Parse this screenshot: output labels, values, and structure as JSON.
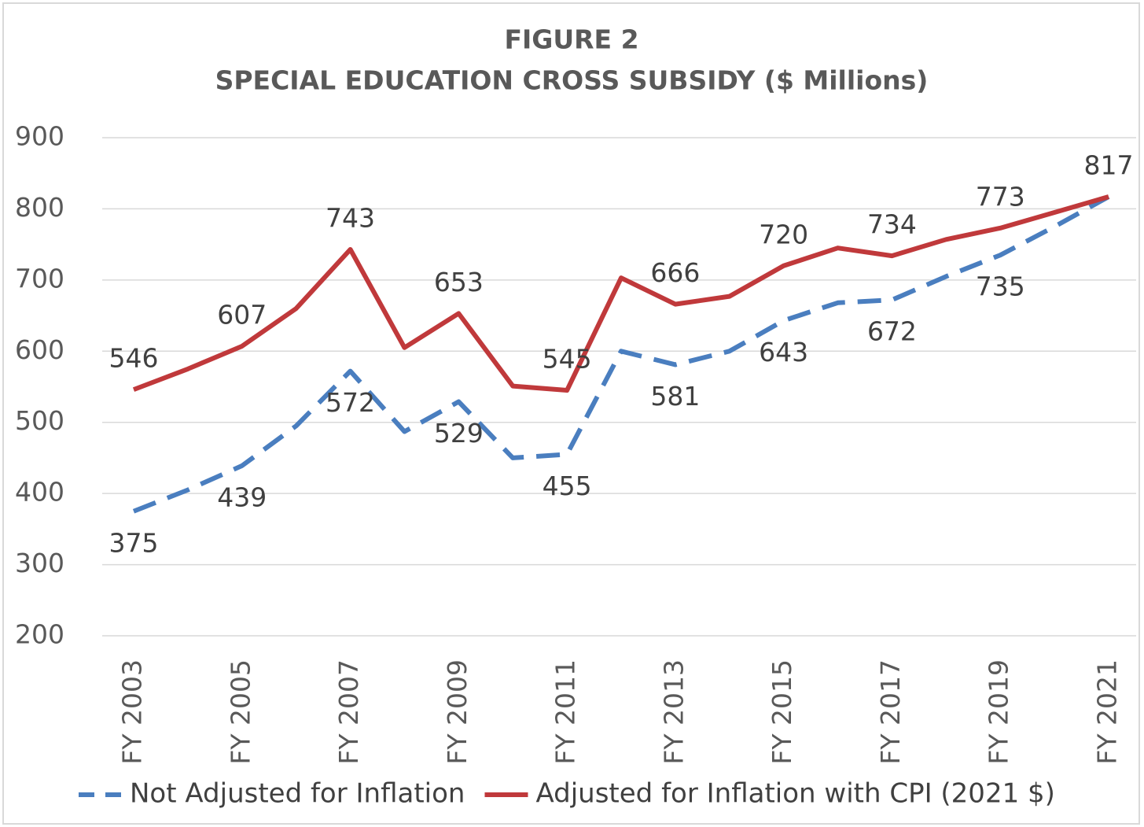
{
  "chart_data": {
    "type": "line",
    "title": "FIGURE 2",
    "subtitle": "SPECIAL EDUCATION CROSS SUBSIDY ($ Millions)",
    "categories": [
      "FY 2003",
      null,
      "FY 2005",
      null,
      "FY 2007",
      null,
      "FY 2009",
      null,
      "FY 2011",
      null,
      "FY 2013",
      null,
      "FY 2015",
      null,
      "FY 2017",
      null,
      "FY 2019",
      null,
      "FY 2021"
    ],
    "series": [
      {
        "name": "Not Adjusted for Inflation",
        "color": "#4a7ebf",
        "dashed": true,
        "values": [
          375,
          405,
          439,
          495,
          572,
          487,
          529,
          450,
          455,
          600,
          581,
          600,
          643,
          668,
          672,
          705,
          735,
          775,
          817
        ],
        "value_labels": [
          "375",
          null,
          "439",
          null,
          "572",
          null,
          "529",
          null,
          "455",
          null,
          "581",
          null,
          "643",
          null,
          "672",
          null,
          "735",
          null,
          null
        ]
      },
      {
        "name": "Adjusted for Inflation with CPI (2021 $)",
        "color": "#c0393b",
        "dashed": false,
        "values": [
          546,
          575,
          607,
          660,
          743,
          605,
          653,
          551,
          545,
          703,
          666,
          677,
          720,
          745,
          734,
          757,
          773,
          795,
          817
        ],
        "value_labels": [
          "546",
          null,
          "607",
          null,
          "743",
          null,
          "653",
          null,
          "545",
          null,
          "666",
          null,
          "720",
          null,
          "734",
          null,
          "773",
          null,
          "817"
        ]
      }
    ],
    "ylim": [
      200,
      900
    ],
    "yticks": [
      200,
      300,
      400,
      500,
      600,
      700,
      800,
      900
    ],
    "grid": true,
    "legend": "bottom"
  }
}
